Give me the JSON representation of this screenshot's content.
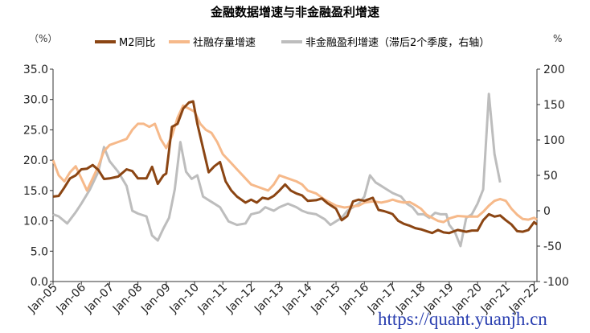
{
  "chart_data": {
    "type": "line",
    "title": "金融数据增速与非金融盈利增速",
    "left_unit": "（%）",
    "right_unit": "%",
    "ylim_left": [
      0,
      35
    ],
    "yticks_left": [
      "0.0",
      "5.0",
      "10.0",
      "15.0",
      "20.0",
      "25.0",
      "30.0",
      "35.0"
    ],
    "ylim_right": [
      -100,
      200
    ],
    "yticks_right": [
      "-100",
      "-50",
      "0",
      "50",
      "100",
      "150",
      "200"
    ],
    "x_ticks": [
      "Jan-05",
      "Jan-06",
      "Jan-07",
      "Jan-08",
      "Jan-09",
      "Jan-10",
      "Jan-11",
      "Jan-12",
      "Jan-13",
      "Jan-14",
      "Jan-15",
      "Jan-16",
      "Jan-17",
      "Jan-18",
      "Jan-19",
      "Jan-20",
      "Jan-21",
      "Jan-22"
    ],
    "x_start": 2005.0,
    "x_end": 2022.1,
    "series": [
      {
        "name": "M2同比",
        "axis": "left",
        "color": "#8b4513",
        "points": [
          [
            2005.0,
            14.0
          ],
          [
            2005.2,
            14.1
          ],
          [
            2005.4,
            15.5
          ],
          [
            2005.6,
            17.0
          ],
          [
            2005.8,
            17.5
          ],
          [
            2006.0,
            18.5
          ],
          [
            2006.2,
            18.6
          ],
          [
            2006.4,
            19.2
          ],
          [
            2006.6,
            18.4
          ],
          [
            2006.8,
            16.9
          ],
          [
            2007.0,
            17.0
          ],
          [
            2007.3,
            17.3
          ],
          [
            2007.6,
            18.5
          ],
          [
            2007.8,
            18.2
          ],
          [
            2008.0,
            17.0
          ],
          [
            2008.3,
            17.0
          ],
          [
            2008.5,
            18.9
          ],
          [
            2008.7,
            16.1
          ],
          [
            2008.9,
            17.5
          ],
          [
            2009.0,
            17.8
          ],
          [
            2009.2,
            25.5
          ],
          [
            2009.4,
            26.0
          ],
          [
            2009.6,
            28.5
          ],
          [
            2009.8,
            29.5
          ],
          [
            2009.95,
            29.7
          ],
          [
            2010.1,
            26.0
          ],
          [
            2010.3,
            22.0
          ],
          [
            2010.5,
            18.0
          ],
          [
            2010.7,
            19.0
          ],
          [
            2010.9,
            19.7
          ],
          [
            2011.1,
            16.5
          ],
          [
            2011.3,
            15.0
          ],
          [
            2011.5,
            14.0
          ],
          [
            2011.8,
            13.0
          ],
          [
            2012.0,
            13.5
          ],
          [
            2012.2,
            13.0
          ],
          [
            2012.4,
            13.8
          ],
          [
            2012.6,
            13.6
          ],
          [
            2012.8,
            14.1
          ],
          [
            2013.0,
            15.0
          ],
          [
            2013.2,
            16.0
          ],
          [
            2013.4,
            15.0
          ],
          [
            2013.6,
            14.5
          ],
          [
            2013.8,
            14.2
          ],
          [
            2014.0,
            13.3
          ],
          [
            2014.3,
            13.4
          ],
          [
            2014.5,
            13.7
          ],
          [
            2014.7,
            12.9
          ],
          [
            2015.0,
            12.0
          ],
          [
            2015.2,
            10.1
          ],
          [
            2015.4,
            10.8
          ],
          [
            2015.6,
            13.2
          ],
          [
            2015.8,
            13.5
          ],
          [
            2016.0,
            13.3
          ],
          [
            2016.3,
            13.8
          ],
          [
            2016.5,
            11.8
          ],
          [
            2016.7,
            11.6
          ],
          [
            2016.9,
            11.3
          ],
          [
            2017.0,
            11.1
          ],
          [
            2017.2,
            10.0
          ],
          [
            2017.4,
            9.5
          ],
          [
            2017.6,
            9.2
          ],
          [
            2017.8,
            8.8
          ],
          [
            2018.0,
            8.6
          ],
          [
            2018.2,
            8.3
          ],
          [
            2018.4,
            8.0
          ],
          [
            2018.6,
            8.5
          ],
          [
            2018.8,
            8.1
          ],
          [
            2019.0,
            8.0
          ],
          [
            2019.3,
            8.5
          ],
          [
            2019.6,
            8.2
          ],
          [
            2019.8,
            8.4
          ],
          [
            2020.0,
            8.4
          ],
          [
            2020.2,
            10.1
          ],
          [
            2020.4,
            11.1
          ],
          [
            2020.6,
            10.7
          ],
          [
            2020.8,
            10.9
          ],
          [
            2021.0,
            10.1
          ],
          [
            2021.2,
            9.4
          ],
          [
            2021.4,
            8.3
          ],
          [
            2021.6,
            8.2
          ],
          [
            2021.8,
            8.5
          ],
          [
            2022.0,
            9.8
          ],
          [
            2022.1,
            9.4
          ]
        ]
      },
      {
        "name": "社融存量增速",
        "axis": "left",
        "color": "#f6b98a",
        "points": [
          [
            2005.0,
            20.0
          ],
          [
            2005.2,
            17.5
          ],
          [
            2005.4,
            16.5
          ],
          [
            2005.6,
            18.0
          ],
          [
            2005.8,
            19.0
          ],
          [
            2006.0,
            17.0
          ],
          [
            2006.2,
            15.0
          ],
          [
            2006.4,
            17.0
          ],
          [
            2006.6,
            19.0
          ],
          [
            2006.8,
            21.5
          ],
          [
            2007.0,
            22.5
          ],
          [
            2007.3,
            23.0
          ],
          [
            2007.6,
            23.5
          ],
          [
            2007.8,
            25.0
          ],
          [
            2008.0,
            26.0
          ],
          [
            2008.2,
            26.0
          ],
          [
            2008.4,
            25.5
          ],
          [
            2008.6,
            26.0
          ],
          [
            2008.8,
            23.5
          ],
          [
            2009.0,
            22.0
          ],
          [
            2009.2,
            24.0
          ],
          [
            2009.4,
            27.0
          ],
          [
            2009.6,
            29.0
          ],
          [
            2009.8,
            28.5
          ],
          [
            2010.0,
            28.0
          ],
          [
            2010.2,
            26.0
          ],
          [
            2010.4,
            25.0
          ],
          [
            2010.6,
            24.5
          ],
          [
            2010.8,
            23.0
          ],
          [
            2011.0,
            21.0
          ],
          [
            2011.3,
            19.5
          ],
          [
            2011.5,
            18.5
          ],
          [
            2011.8,
            17.0
          ],
          [
            2012.0,
            16.0
          ],
          [
            2012.3,
            15.5
          ],
          [
            2012.6,
            15.0
          ],
          [
            2012.8,
            16.0
          ],
          [
            2013.0,
            17.5
          ],
          [
            2013.3,
            17.0
          ],
          [
            2013.6,
            16.5
          ],
          [
            2013.8,
            16.0
          ],
          [
            2014.0,
            15.0
          ],
          [
            2014.3,
            14.5
          ],
          [
            2014.6,
            13.5
          ],
          [
            2014.8,
            13.0
          ],
          [
            2015.0,
            12.5
          ],
          [
            2015.3,
            12.2
          ],
          [
            2015.6,
            12.4
          ],
          [
            2015.8,
            12.5
          ],
          [
            2016.0,
            13.0
          ],
          [
            2016.3,
            13.2
          ],
          [
            2016.6,
            13.0
          ],
          [
            2016.8,
            13.2
          ],
          [
            2017.0,
            13.5
          ],
          [
            2017.2,
            13.2
          ],
          [
            2017.4,
            13.0
          ],
          [
            2017.6,
            13.1
          ],
          [
            2017.8,
            12.6
          ],
          [
            2018.0,
            12.0
          ],
          [
            2018.2,
            11.0
          ],
          [
            2018.4,
            10.5
          ],
          [
            2018.6,
            10.0
          ],
          [
            2018.8,
            9.8
          ],
          [
            2019.0,
            10.4
          ],
          [
            2019.3,
            10.8
          ],
          [
            2019.6,
            10.7
          ],
          [
            2019.8,
            10.7
          ],
          [
            2020.0,
            10.7
          ],
          [
            2020.2,
            11.5
          ],
          [
            2020.4,
            12.5
          ],
          [
            2020.6,
            13.3
          ],
          [
            2020.8,
            13.6
          ],
          [
            2021.0,
            13.3
          ],
          [
            2021.2,
            12.0
          ],
          [
            2021.4,
            11.0
          ],
          [
            2021.6,
            10.3
          ],
          [
            2021.8,
            10.2
          ],
          [
            2022.0,
            10.5
          ],
          [
            2022.1,
            10.2
          ]
        ]
      },
      {
        "name": "非金融盈利增速（滞后2个季度，右轴）",
        "axis": "right",
        "color": "#bdbdbd",
        "points": [
          [
            2005.0,
            -5
          ],
          [
            2005.2,
            -8
          ],
          [
            2005.5,
            -18
          ],
          [
            2005.8,
            -2
          ],
          [
            2006.0,
            10
          ],
          [
            2006.3,
            30
          ],
          [
            2006.6,
            55
          ],
          [
            2006.8,
            90
          ],
          [
            2007.0,
            70
          ],
          [
            2007.3,
            55
          ],
          [
            2007.6,
            35
          ],
          [
            2007.8,
            0
          ],
          [
            2008.0,
            -4
          ],
          [
            2008.3,
            -8
          ],
          [
            2008.5,
            -35
          ],
          [
            2008.7,
            -42
          ],
          [
            2008.9,
            -25
          ],
          [
            2009.1,
            -10
          ],
          [
            2009.3,
            30
          ],
          [
            2009.5,
            97
          ],
          [
            2009.7,
            55
          ],
          [
            2009.9,
            45
          ],
          [
            2010.1,
            50
          ],
          [
            2010.3,
            20
          ],
          [
            2010.5,
            15
          ],
          [
            2010.7,
            10
          ],
          [
            2010.9,
            5
          ],
          [
            2011.2,
            -15
          ],
          [
            2011.5,
            -20
          ],
          [
            2011.8,
            -18
          ],
          [
            2012.0,
            -5
          ],
          [
            2012.3,
            -2
          ],
          [
            2012.5,
            5
          ],
          [
            2012.8,
            0
          ],
          [
            2013.0,
            5
          ],
          [
            2013.3,
            10
          ],
          [
            2013.6,
            5
          ],
          [
            2013.8,
            0
          ],
          [
            2014.0,
            -3
          ],
          [
            2014.3,
            -5
          ],
          [
            2014.6,
            -12
          ],
          [
            2014.8,
            -20
          ],
          [
            2015.0,
            -15
          ],
          [
            2015.2,
            -10
          ],
          [
            2015.4,
            0
          ],
          [
            2015.6,
            5
          ],
          [
            2015.8,
            10
          ],
          [
            2016.0,
            20
          ],
          [
            2016.2,
            50
          ],
          [
            2016.4,
            40
          ],
          [
            2016.6,
            35
          ],
          [
            2016.8,
            30
          ],
          [
            2017.0,
            25
          ],
          [
            2017.3,
            20
          ],
          [
            2017.5,
            10
          ],
          [
            2017.7,
            5
          ],
          [
            2017.9,
            -5
          ],
          [
            2018.1,
            -5
          ],
          [
            2018.3,
            -10
          ],
          [
            2018.5,
            -3
          ],
          [
            2018.7,
            -5
          ],
          [
            2018.9,
            -5
          ],
          [
            2019.0,
            -20
          ],
          [
            2019.2,
            -30
          ],
          [
            2019.4,
            -50
          ],
          [
            2019.6,
            -10
          ],
          [
            2019.8,
            -5
          ],
          [
            2020.0,
            10
          ],
          [
            2020.2,
            30
          ],
          [
            2020.4,
            165
          ],
          [
            2020.6,
            80
          ],
          [
            2020.8,
            40
          ]
        ]
      }
    ]
  },
  "watermark": "https://quant.yuanjh.cn"
}
